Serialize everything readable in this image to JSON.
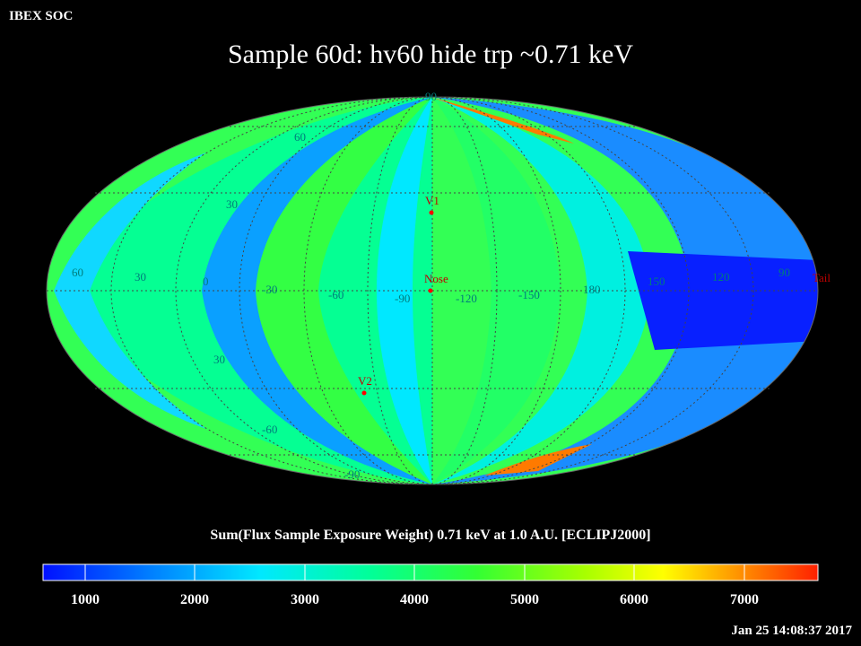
{
  "header": {
    "corner_label": "IBEX SOC",
    "title": "Sample 60d: hv60 hide trp ~0.71 keV"
  },
  "colorbar": {
    "caption": "Sum(Flux Sample Exposure Weight)  0.71 keV at 1.0 A.U. [ECLIPJ2000]",
    "range": [
      800,
      7700
    ],
    "ticks": [
      "1000",
      "2000",
      "3000",
      "4000",
      "5000",
      "6000",
      "7000"
    ],
    "tick_values": [
      1000,
      2000,
      3000,
      4000,
      5000,
      6000,
      7000
    ],
    "colors": [
      "#0010ff",
      "#0080ff",
      "#00e8ff",
      "#00ff9a",
      "#33ff33",
      "#a8ff00",
      "#ffff00",
      "#ff9000",
      "#ff2000"
    ]
  },
  "map": {
    "projection": "Aitoff/Hammer equal-area, ecliptic",
    "lon_labels": [
      "60",
      "30",
      "0",
      "-30",
      "-60",
      "-90",
      "-120",
      "-150",
      "180",
      "150",
      "120",
      "90"
    ],
    "lat_labels_upper": [
      "90",
      "60",
      "30"
    ],
    "lat_labels_lower": [
      "30",
      "-60",
      "-90"
    ],
    "markers": [
      {
        "label": "V1"
      },
      {
        "label": "Nose"
      },
      {
        "label": "V2"
      },
      {
        "label": "Tail"
      }
    ],
    "marker_color": "#ff2020",
    "grid_label_color": "#00a0a0"
  },
  "footer": {
    "timestamp": "Jan 25 14:08:37 2017"
  }
}
